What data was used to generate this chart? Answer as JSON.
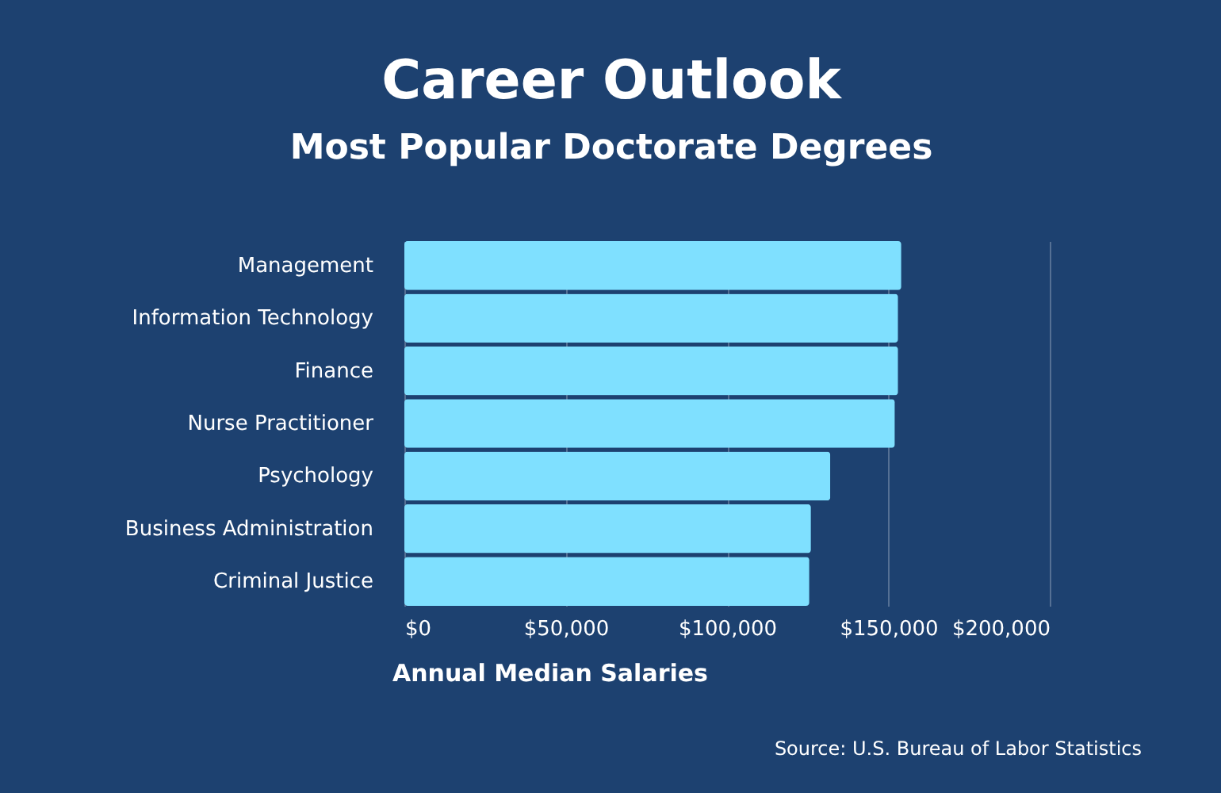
{
  "chart_data": {
    "type": "bar",
    "orientation": "horizontal",
    "title": "Career Outlook",
    "subtitle": "Most Popular Doctorate Degrees",
    "categories": [
      "Management",
      "Information Technology",
      "Finance",
      "Nurse Practitioner",
      "Psychology",
      "Business Administration",
      "Criminal Justice"
    ],
    "values": [
      154000,
      153000,
      153000,
      152000,
      132000,
      126000,
      125500
    ],
    "color": "#7fe0ff",
    "xlim": [
      0,
      200000
    ],
    "xticks": [
      {
        "value": 0,
        "label": "$0"
      },
      {
        "value": 50000,
        "label": "$50,000"
      },
      {
        "value": 100000,
        "label": "$100,000"
      },
      {
        "value": 150000,
        "label": "$150,000"
      },
      {
        "value": 200000,
        "label": "$200,000"
      }
    ],
    "xlabel": "Annual Median Salaries",
    "grid": "x",
    "annotations": [
      "Source: U.S. Bureau of Labor Statistics"
    ]
  }
}
